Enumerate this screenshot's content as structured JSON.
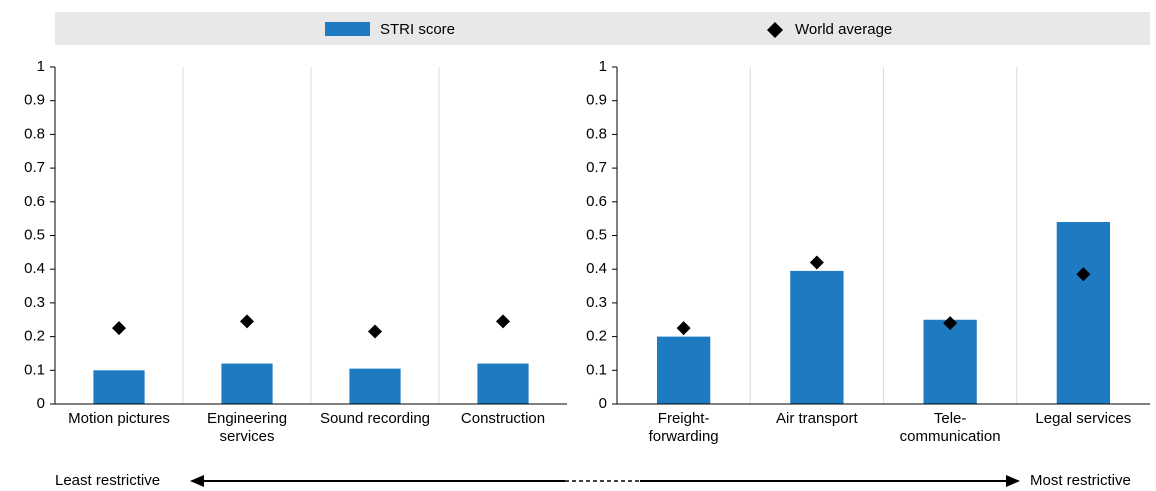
{
  "chart_data": [
    {
      "type": "bar",
      "categories": [
        "Motion pictures",
        "Engineering\nservices",
        "Sound recording",
        "Construction"
      ],
      "series": [
        {
          "name": "STRI score",
          "color": "#1f7bc1",
          "values": [
            0.1,
            0.12,
            0.105,
            0.12
          ]
        },
        {
          "name": "World average",
          "color": "#000000",
          "marker": "diamond",
          "values": [
            0.225,
            0.245,
            0.215,
            0.245
          ]
        }
      ],
      "ylim": [
        0,
        1
      ],
      "yticks": [
        0,
        0.1,
        0.2,
        0.3,
        0.4,
        0.5,
        0.6,
        0.7,
        0.8,
        0.9,
        1
      ]
    },
    {
      "type": "bar",
      "categories": [
        "Freight-\nforwarding",
        "Air transport",
        "Tele-\ncommunication",
        "Legal services"
      ],
      "series": [
        {
          "color": "#1f7bc1",
          "values": [
            0.2,
            0.395,
            0.25,
            0.54
          ]
        },
        {
          "color": "#000000",
          "marker": "diamond",
          "values": [
            0.225,
            0.42,
            0.24,
            0.385
          ]
        }
      ],
      "ylim": [
        0,
        1
      ],
      "yticks": [
        0,
        0.1,
        0.2,
        0.3,
        0.4,
        0.5,
        0.6,
        0.7,
        0.8,
        0.9,
        1
      ]
    }
  ],
  "annotations": {
    "left": "Least restrictive",
    "right": "Most restrictive"
  }
}
